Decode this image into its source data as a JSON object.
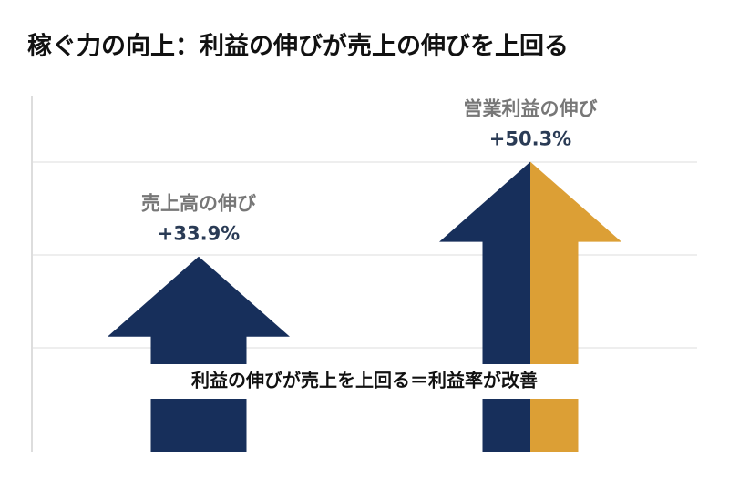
{
  "chart_data": {
    "type": "arrow",
    "title": "稼ぐ力の向上：利益の伸びが売上の伸びを上回る",
    "categories": [
      "売上高の伸び",
      "営業利益の伸び"
    ],
    "values": [
      33.9,
      50.3
    ],
    "value_labels": [
      "+33.9%",
      "+50.3%"
    ],
    "colors": [
      [
        "#172f5b"
      ],
      [
        "#172f5b",
        "#dc9f35"
      ]
    ],
    "ylim": [
      0,
      60
    ],
    "annotation": "利益の伸びが売上を上回る＝利益率が改善"
  }
}
